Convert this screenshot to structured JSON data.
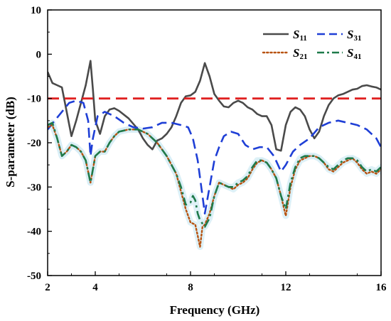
{
  "chart_data": {
    "type": "line",
    "title": "",
    "xlabel": "Frequency (GHz)",
    "ylabel": "S-parameter (dB)",
    "xlim": [
      2,
      16
    ],
    "ylim": [
      -50,
      10
    ],
    "xticks": [
      2,
      4,
      8,
      12,
      16
    ],
    "xtick_labels": [
      "2",
      "4",
      "8",
      "12",
      "16"
    ],
    "yticks": [
      10,
      0,
      -10,
      -20,
      -30,
      -40,
      -50
    ],
    "ytick_labels": [
      "10",
      "0",
      "-10",
      "-20",
      "-30",
      "-40",
      "-50"
    ],
    "grid": false,
    "legend_position": "top-right",
    "colors": {
      "S11": "#4a4a4a",
      "S31": "#1f3fd6",
      "S21": "#b8520f",
      "S41": "#1f7a4a",
      "threshold": "#e02020",
      "halo": "#d6eef5"
    },
    "reference_line": {
      "y": -10,
      "style": "dashed"
    },
    "legend": [
      {
        "key": "S11",
        "base": "S",
        "sub": "11"
      },
      {
        "key": "S31",
        "base": "S",
        "sub": "31"
      },
      {
        "key": "S21",
        "base": "S",
        "sub": "21"
      },
      {
        "key": "S41",
        "base": "S",
        "sub": "41"
      }
    ],
    "series": [
      {
        "key": "S11",
        "name": "S11",
        "style": "solid",
        "points": [
          [
            2.0,
            -4
          ],
          [
            2.2,
            -6.5
          ],
          [
            2.4,
            -7
          ],
          [
            2.6,
            -7.5
          ],
          [
            2.8,
            -13
          ],
          [
            3.0,
            -18.5
          ],
          [
            3.2,
            -15
          ],
          [
            3.4,
            -11
          ],
          [
            3.6,
            -7
          ],
          [
            3.8,
            -1.5
          ],
          [
            3.9,
            -8
          ],
          [
            4.0,
            -15
          ],
          [
            4.2,
            -18
          ],
          [
            4.4,
            -14
          ],
          [
            4.6,
            -12.5
          ],
          [
            4.8,
            -12.2
          ],
          [
            5.0,
            -12.8
          ],
          [
            5.4,
            -14.5
          ],
          [
            5.8,
            -17
          ],
          [
            6.0,
            -19
          ],
          [
            6.2,
            -20.5
          ],
          [
            6.4,
            -21.5
          ],
          [
            6.6,
            -19.5
          ],
          [
            6.8,
            -19
          ],
          [
            7.0,
            -18
          ],
          [
            7.2,
            -16.5
          ],
          [
            7.4,
            -14
          ],
          [
            7.6,
            -11
          ],
          [
            7.8,
            -9.5
          ],
          [
            8.0,
            -9.3
          ],
          [
            8.2,
            -8.5
          ],
          [
            8.4,
            -6
          ],
          [
            8.6,
            -2
          ],
          [
            8.8,
            -5
          ],
          [
            9.0,
            -9
          ],
          [
            9.2,
            -10.5
          ],
          [
            9.4,
            -11.8
          ],
          [
            9.6,
            -12
          ],
          [
            9.8,
            -11
          ],
          [
            10.0,
            -10.5
          ],
          [
            10.2,
            -11
          ],
          [
            10.4,
            -12
          ],
          [
            10.6,
            -12.5
          ],
          [
            10.8,
            -13.5
          ],
          [
            11.0,
            -14
          ],
          [
            11.2,
            -14
          ],
          [
            11.4,
            -16
          ],
          [
            11.6,
            -21.5
          ],
          [
            11.8,
            -21.8
          ],
          [
            12.0,
            -16
          ],
          [
            12.2,
            -13
          ],
          [
            12.4,
            -12
          ],
          [
            12.6,
            -12.5
          ],
          [
            12.8,
            -14
          ],
          [
            13.0,
            -17
          ],
          [
            13.2,
            -19
          ],
          [
            13.4,
            -17.5
          ],
          [
            13.6,
            -14
          ],
          [
            13.8,
            -11.5
          ],
          [
            14.0,
            -10
          ],
          [
            14.2,
            -9.3
          ],
          [
            14.4,
            -9
          ],
          [
            14.6,
            -8.5
          ],
          [
            14.8,
            -8
          ],
          [
            15.0,
            -7.8
          ],
          [
            15.2,
            -7.2
          ],
          [
            15.4,
            -7
          ],
          [
            15.6,
            -7.3
          ],
          [
            15.8,
            -7.5
          ],
          [
            16.0,
            -8
          ]
        ]
      },
      {
        "key": "S31",
        "name": "S31",
        "style": "dashed",
        "points": [
          [
            2.0,
            -17
          ],
          [
            2.3,
            -15
          ],
          [
            2.6,
            -13
          ],
          [
            2.9,
            -11
          ],
          [
            3.2,
            -10.5
          ],
          [
            3.5,
            -11
          ],
          [
            3.7,
            -15
          ],
          [
            3.8,
            -23
          ],
          [
            3.9,
            -19
          ],
          [
            4.1,
            -14
          ],
          [
            4.4,
            -13
          ],
          [
            4.8,
            -14
          ],
          [
            5.2,
            -15.5
          ],
          [
            5.6,
            -16.5
          ],
          [
            6.0,
            -16.8
          ],
          [
            6.4,
            -16.5
          ],
          [
            6.8,
            -15.5
          ],
          [
            7.2,
            -15.5
          ],
          [
            7.6,
            -16
          ],
          [
            7.9,
            -16.5
          ],
          [
            8.1,
            -19
          ],
          [
            8.3,
            -24
          ],
          [
            8.5,
            -32
          ],
          [
            8.6,
            -36
          ],
          [
            8.8,
            -30
          ],
          [
            9.0,
            -24
          ],
          [
            9.2,
            -21
          ],
          [
            9.4,
            -18.5
          ],
          [
            9.7,
            -17.5
          ],
          [
            10.0,
            -18
          ],
          [
            10.3,
            -20.5
          ],
          [
            10.6,
            -21.5
          ],
          [
            10.9,
            -21
          ],
          [
            11.2,
            -21
          ],
          [
            11.5,
            -23
          ],
          [
            11.8,
            -26.5
          ],
          [
            12.0,
            -25
          ],
          [
            12.3,
            -22
          ],
          [
            12.6,
            -20.5
          ],
          [
            13.0,
            -19
          ],
          [
            13.4,
            -16.5
          ],
          [
            13.8,
            -15.5
          ],
          [
            14.2,
            -15
          ],
          [
            14.6,
            -15.5
          ],
          [
            15.0,
            -16
          ],
          [
            15.4,
            -17
          ],
          [
            15.8,
            -19
          ],
          [
            16.0,
            -21
          ]
        ]
      },
      {
        "key": "S21",
        "name": "S21",
        "style": "dotted",
        "points": [
          [
            2.0,
            -16.5
          ],
          [
            2.2,
            -16
          ],
          [
            2.4,
            -19
          ],
          [
            2.6,
            -23
          ],
          [
            2.8,
            -22
          ],
          [
            3.0,
            -20.5
          ],
          [
            3.2,
            -21
          ],
          [
            3.4,
            -22
          ],
          [
            3.6,
            -24
          ],
          [
            3.8,
            -29
          ],
          [
            3.9,
            -26
          ],
          [
            4.0,
            -23
          ],
          [
            4.2,
            -22
          ],
          [
            4.4,
            -22
          ],
          [
            4.6,
            -20
          ],
          [
            4.8,
            -18.5
          ],
          [
            5.0,
            -17.5
          ],
          [
            5.4,
            -17
          ],
          [
            5.8,
            -17
          ],
          [
            6.2,
            -18
          ],
          [
            6.6,
            -20
          ],
          [
            7.0,
            -23
          ],
          [
            7.4,
            -27
          ],
          [
            7.6,
            -31
          ],
          [
            7.8,
            -35
          ],
          [
            8.0,
            -38
          ],
          [
            8.2,
            -38.5
          ],
          [
            8.3,
            -41
          ],
          [
            8.4,
            -43.5
          ],
          [
            8.5,
            -39
          ],
          [
            8.6,
            -38.5
          ],
          [
            8.8,
            -36
          ],
          [
            9.0,
            -32
          ],
          [
            9.2,
            -29
          ],
          [
            9.4,
            -29.5
          ],
          [
            9.6,
            -30
          ],
          [
            9.8,
            -30.5
          ],
          [
            10.0,
            -29.5
          ],
          [
            10.2,
            -29
          ],
          [
            10.4,
            -28
          ],
          [
            10.6,
            -26
          ],
          [
            10.8,
            -24.5
          ],
          [
            11.0,
            -24
          ],
          [
            11.2,
            -24.5
          ],
          [
            11.4,
            -26
          ],
          [
            11.6,
            -28
          ],
          [
            11.8,
            -32
          ],
          [
            12.0,
            -36.5
          ],
          [
            12.2,
            -30
          ],
          [
            12.4,
            -26
          ],
          [
            12.6,
            -24
          ],
          [
            12.8,
            -23.5
          ],
          [
            13.0,
            -23
          ],
          [
            13.2,
            -23
          ],
          [
            13.4,
            -23.5
          ],
          [
            13.6,
            -24.5
          ],
          [
            13.8,
            -26
          ],
          [
            14.0,
            -26.5
          ],
          [
            14.2,
            -25.5
          ],
          [
            14.4,
            -24.5
          ],
          [
            14.6,
            -24
          ],
          [
            14.8,
            -23.5
          ],
          [
            15.0,
            -24.5
          ],
          [
            15.2,
            -26
          ],
          [
            15.4,
            -27
          ],
          [
            15.6,
            -26.5
          ],
          [
            15.8,
            -27
          ],
          [
            16.0,
            -26
          ]
        ]
      },
      {
        "key": "S41",
        "name": "S41",
        "style": "dashdot",
        "points": [
          [
            2.0,
            -16
          ],
          [
            2.2,
            -15.5
          ],
          [
            2.4,
            -19
          ],
          [
            2.6,
            -23
          ],
          [
            2.8,
            -22
          ],
          [
            3.0,
            -20.5
          ],
          [
            3.2,
            -21
          ],
          [
            3.4,
            -22
          ],
          [
            3.6,
            -24
          ],
          [
            3.8,
            -29
          ],
          [
            3.9,
            -26
          ],
          [
            4.0,
            -23
          ],
          [
            4.2,
            -22
          ],
          [
            4.4,
            -22
          ],
          [
            4.6,
            -20
          ],
          [
            4.8,
            -18.5
          ],
          [
            5.0,
            -17.5
          ],
          [
            5.4,
            -17
          ],
          [
            5.8,
            -17
          ],
          [
            6.2,
            -18
          ],
          [
            6.6,
            -20
          ],
          [
            7.0,
            -23
          ],
          [
            7.4,
            -27
          ],
          [
            7.6,
            -30
          ],
          [
            7.8,
            -34
          ],
          [
            8.0,
            -33.5
          ],
          [
            8.1,
            -32
          ],
          [
            8.2,
            -33
          ],
          [
            8.3,
            -36
          ],
          [
            8.4,
            -37.5
          ],
          [
            8.6,
            -39
          ],
          [
            8.8,
            -37
          ],
          [
            9.0,
            -32
          ],
          [
            9.2,
            -29
          ],
          [
            9.4,
            -29.5
          ],
          [
            9.6,
            -30
          ],
          [
            9.8,
            -30
          ],
          [
            10.0,
            -29
          ],
          [
            10.2,
            -28.5
          ],
          [
            10.4,
            -27.5
          ],
          [
            10.6,
            -25.5
          ],
          [
            10.8,
            -24
          ],
          [
            11.0,
            -24
          ],
          [
            11.2,
            -24.5
          ],
          [
            11.4,
            -26
          ],
          [
            11.6,
            -28
          ],
          [
            11.8,
            -32
          ],
          [
            12.0,
            -35
          ],
          [
            12.2,
            -29
          ],
          [
            12.4,
            -25.5
          ],
          [
            12.6,
            -23.5
          ],
          [
            12.8,
            -23
          ],
          [
            13.0,
            -23
          ],
          [
            13.2,
            -23
          ],
          [
            13.4,
            -23.5
          ],
          [
            13.6,
            -24.5
          ],
          [
            13.8,
            -25.5
          ],
          [
            14.0,
            -26
          ],
          [
            14.2,
            -25
          ],
          [
            14.4,
            -24
          ],
          [
            14.6,
            -23.5
          ],
          [
            14.8,
            -23.5
          ],
          [
            15.0,
            -24
          ],
          [
            15.2,
            -25.5
          ],
          [
            15.4,
            -26.5
          ],
          [
            15.6,
            -26
          ],
          [
            15.8,
            -26.5
          ],
          [
            16.0,
            -25.5
          ]
        ]
      }
    ]
  }
}
